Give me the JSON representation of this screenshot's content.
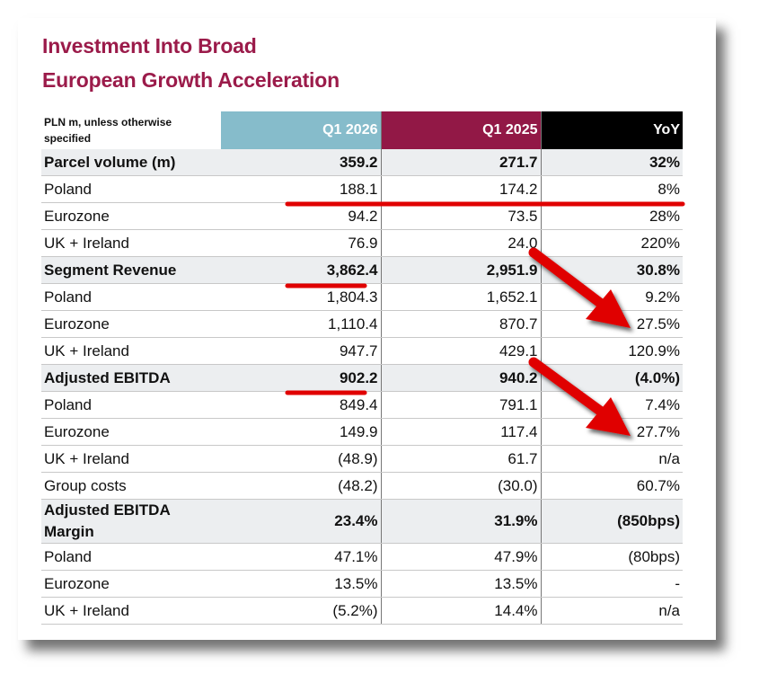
{
  "title_lines": [
    "Investment Into Broad",
    "European Growth Acceleration"
  ],
  "header": {
    "label": "PLN m, unless otherwise specified",
    "col1": "Q1 2026",
    "col2": "Q1 2025",
    "col3": "YoY"
  },
  "rows": [
    {
      "label": "Parcel volume (m)",
      "q1_2026": "359.2",
      "q1_2025": "271.7",
      "yoy": "32%",
      "bold": true
    },
    {
      "label": "Poland",
      "q1_2026": "188.1",
      "q1_2025": "174.2",
      "yoy": "8%",
      "bold": false
    },
    {
      "label": "Eurozone",
      "q1_2026": "94.2",
      "q1_2025": "73.5",
      "yoy": "28%",
      "bold": false
    },
    {
      "label": "UK + Ireland",
      "q1_2026": "76.9",
      "q1_2025": "24.0",
      "yoy": "220%",
      "bold": false
    },
    {
      "label": "Segment Revenue",
      "q1_2026": "3,862.4",
      "q1_2025": "2,951.9",
      "yoy": "30.8%",
      "bold": true
    },
    {
      "label": "Poland",
      "q1_2026": "1,804.3",
      "q1_2025": "1,652.1",
      "yoy": "9.2%",
      "bold": false
    },
    {
      "label": "Eurozone",
      "q1_2026": "1,110.4",
      "q1_2025": "870.7",
      "yoy": "27.5%",
      "bold": false
    },
    {
      "label": "UK + Ireland",
      "q1_2026": "947.7",
      "q1_2025": "429.1",
      "yoy": "120.9%",
      "bold": false
    },
    {
      "label": "Adjusted EBITDA",
      "q1_2026": "902.2",
      "q1_2025": "940.2",
      "yoy": "(4.0%)",
      "bold": true
    },
    {
      "label": "Poland",
      "q1_2026": "849.4",
      "q1_2025": "791.1",
      "yoy": "7.4%",
      "bold": false
    },
    {
      "label": "Eurozone",
      "q1_2026": "149.9",
      "q1_2025": "117.4",
      "yoy": "27.7%",
      "bold": false
    },
    {
      "label": "UK + Ireland",
      "q1_2026": "(48.9)",
      "q1_2025": "61.7",
      "yoy": "n/a",
      "bold": false
    },
    {
      "label": "Group costs",
      "q1_2026": "(48.2)",
      "q1_2025": "(30.0)",
      "yoy": "60.7%",
      "bold": false
    },
    {
      "label": "Adjusted EBITDA Margin",
      "q1_2026": "23.4%",
      "q1_2025": "31.9%",
      "yoy": "(850bps)",
      "bold": true
    },
    {
      "label": "Poland",
      "q1_2026": "47.1%",
      "q1_2025": "47.9%",
      "yoy": "(80bps)",
      "bold": false
    },
    {
      "label": "Eurozone",
      "q1_2026": "13.5%",
      "q1_2025": "13.5%",
      "yoy": "-",
      "bold": false
    },
    {
      "label": "UK + Ireland",
      "q1_2026": "(5.2%)",
      "q1_2025": "14.4%",
      "yoy": "n/a",
      "bold": false
    }
  ],
  "colors": {
    "title": "#9b1b4a",
    "q1_2026_header": "#86bccb",
    "q1_2025_header": "#921846",
    "yoy_header": "#000000",
    "bold_row_bg": "#eceef0",
    "annotation_red": "#e00000"
  },
  "annotations": [
    {
      "type": "underline",
      "target": "Poland row",
      "name": "red-underline-poland"
    },
    {
      "type": "underline",
      "target": "Segment Revenue Q1 2026",
      "name": "red-underline-revenue"
    },
    {
      "type": "underline",
      "target": "Adjusted EBITDA Q1 2026",
      "name": "red-underline-ebitda"
    },
    {
      "type": "arrow",
      "target": "Eurozone revenue YoY 27.5%",
      "name": "red-arrow-revenue"
    },
    {
      "type": "arrow",
      "target": "Eurozone EBITDA YoY 27.7%",
      "name": "red-arrow-ebitda"
    }
  ]
}
